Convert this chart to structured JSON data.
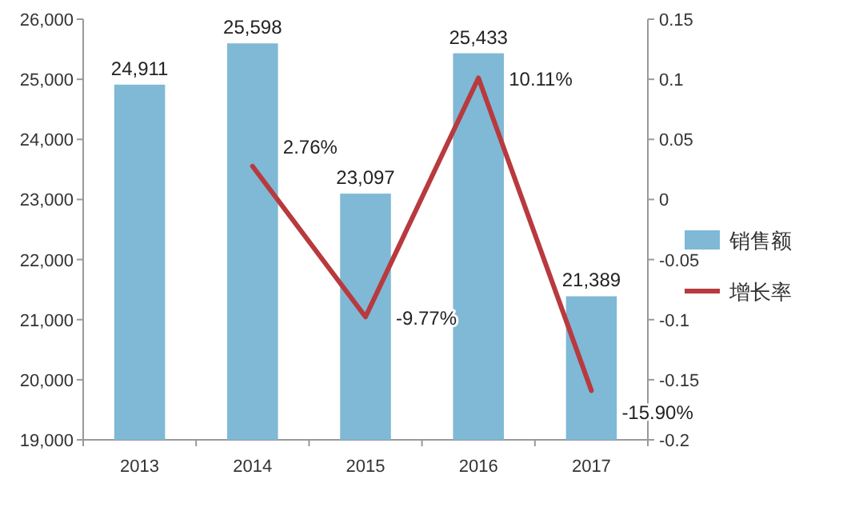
{
  "chart_data": {
    "type": "bar",
    "categories": [
      "2013",
      "2014",
      "2015",
      "2016",
      "2017"
    ],
    "series": [
      {
        "name": "销售额",
        "color": "#7fb9d6",
        "values": [
          24911,
          25598,
          23097,
          25433,
          21389
        ],
        "value_labels": [
          "24,911",
          "25,598",
          "23,097",
          "25,433",
          "21,389"
        ]
      },
      {
        "name": "增长率",
        "type": "line",
        "axis": "y2",
        "color": "#b83a3e",
        "values": [
          null,
          0.0276,
          -0.0977,
          0.1011,
          -0.159
        ],
        "value_labels": [
          null,
          "2.76%",
          "-9.77%",
          "10.11%",
          "-15.90%"
        ]
      }
    ],
    "ylim": [
      19000,
      26000
    ],
    "yticks": [
      {
        "value": 19000,
        "label": "19,000"
      },
      {
        "value": 20000,
        "label": "20,000"
      },
      {
        "value": 21000,
        "label": "21,000"
      },
      {
        "value": 22000,
        "label": "22,000"
      },
      {
        "value": 23000,
        "label": "23,000"
      },
      {
        "value": 24000,
        "label": "24,000"
      },
      {
        "value": 25000,
        "label": "25,000"
      },
      {
        "value": 26000,
        "label": "26,000"
      }
    ],
    "y2lim": [
      -0.2,
      0.15
    ],
    "y2ticks": [
      {
        "value": -0.2,
        "label": "-0.2"
      },
      {
        "value": -0.15,
        "label": "-0.15"
      },
      {
        "value": -0.1,
        "label": "-0.1"
      },
      {
        "value": -0.05,
        "label": "-0.05"
      },
      0,
      0.05,
      0.1,
      0.15
    ],
    "legend": "right",
    "grid": false
  }
}
